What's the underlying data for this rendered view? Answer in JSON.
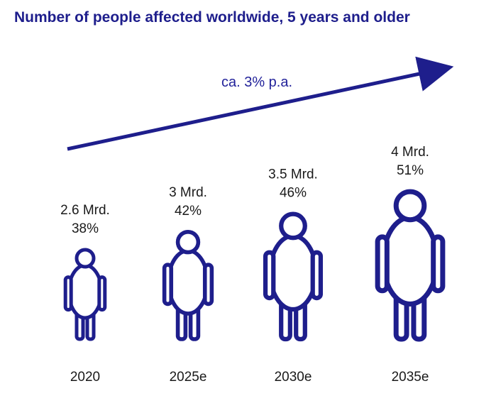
{
  "chart_data": {
    "type": "pictograph",
    "title": "Number of people affected worldwide, 5 years and older",
    "categories": [
      "2020",
      "2025e",
      "2030e",
      "2035e"
    ],
    "series": [
      {
        "values": [
          2.6,
          3,
          3.5,
          4
        ],
        "labels": [
          "2.6 Mrd.",
          "3 Mrd.",
          "3.5 Mrd.",
          "4 Mrd."
        ]
      },
      {
        "values": [
          38,
          42,
          46,
          51
        ],
        "labels": [
          "38%",
          "42%",
          "46%",
          "51%"
        ]
      }
    ],
    "annotation": "ca. 3% p.a.",
    "colors": {
      "figure": "#1e1e8c",
      "title": "#1e1e8c",
      "arrow": "#1e1e8c"
    }
  }
}
